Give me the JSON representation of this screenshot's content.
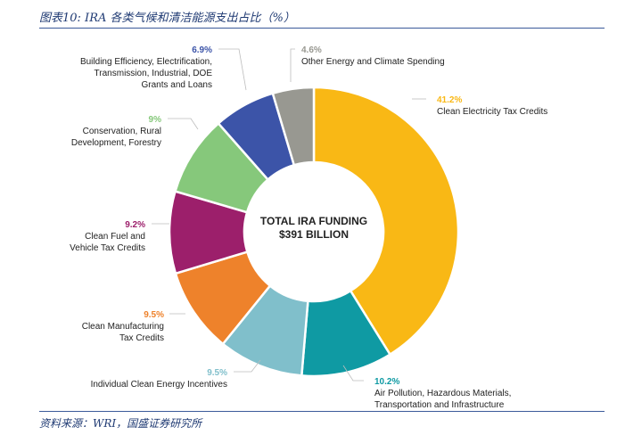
{
  "header": {
    "title": "图表10:  IRA 各类气候和清洁能源支出占比（%）"
  },
  "footer": {
    "source": "资料来源：WRI，国盛证券研究所"
  },
  "chart_data": {
    "type": "pie",
    "donut": true,
    "center_label": [
      "TOTAL IRA FUNDING",
      "$391 BILLION"
    ],
    "unit": "%",
    "slices": [
      {
        "label": [
          "Clean Electricity Tax Credits"
        ],
        "value": 41.2,
        "display": "41.2%",
        "color": "#f9b815"
      },
      {
        "label": [
          "Air Pollution, Hazardous Materials,",
          "Transportation and Infrastructure"
        ],
        "value": 10.2,
        "display": "10.2%",
        "color": "#0f9aa3"
      },
      {
        "label": [
          "Individual Clean Energy Incentives"
        ],
        "value": 9.5,
        "display": "9.5%",
        "color": "#80bfcb"
      },
      {
        "label": [
          "Clean Manufacturing",
          "Tax Credits"
        ],
        "value": 9.5,
        "display": "9.5%",
        "color": "#ee822b"
      },
      {
        "label": [
          "Clean Fuel and",
          "Vehicle Tax Credits"
        ],
        "value": 9.2,
        "display": "9.2%",
        "color": "#9c1f6b"
      },
      {
        "label": [
          "Conservation, Rural",
          "Development, Forestry"
        ],
        "value": 9,
        "display": "9%",
        "color": "#86c87b"
      },
      {
        "label": [
          "Building Efficiency, Electrification,",
          "Transmission, Industrial, DOE",
          "Grants and Loans"
        ],
        "value": 6.9,
        "display": "6.9%",
        "color": "#3c54a8"
      },
      {
        "label": [
          "Other Energy and Climate Spending"
        ],
        "value": 4.6,
        "display": "4.6%",
        "color": "#989891"
      }
    ]
  }
}
